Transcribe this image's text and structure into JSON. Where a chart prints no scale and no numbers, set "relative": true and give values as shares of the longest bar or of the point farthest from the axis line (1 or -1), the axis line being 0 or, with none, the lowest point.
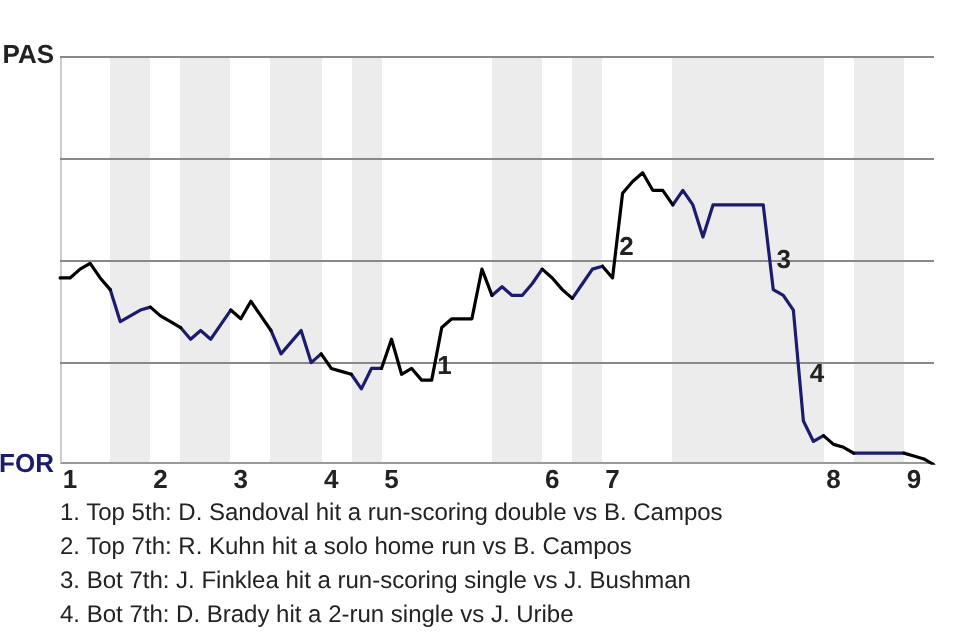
{
  "chart_data": {
    "type": "line",
    "relative": true,
    "categories": [
      null,
      "1",
      null,
      null,
      null,
      null,
      null,
      null,
      null,
      null,
      "2",
      null,
      null,
      null,
      null,
      null,
      null,
      null,
      "3",
      null,
      null,
      null,
      null,
      null,
      null,
      null,
      null,
      "4",
      null,
      null,
      null,
      null,
      null,
      "5",
      null,
      null,
      null,
      null,
      null,
      null,
      null,
      null,
      null,
      null,
      null,
      null,
      null,
      null,
      null,
      "6",
      null,
      null,
      null,
      null,
      null,
      "7",
      null,
      null,
      null,
      null,
      null,
      null,
      null,
      null,
      null,
      null,
      null,
      null,
      null,
      null,
      null,
      null,
      null,
      null,
      null,
      null,
      null,
      "8",
      null,
      null,
      null,
      null,
      null,
      null,
      null,
      "9",
      null,
      null
    ],
    "series": [
      {
        "color": "#000000",
        "values": [
          0.64,
          0.64,
          0.67,
          0.69,
          0.64,
          0.6,
          null,
          null,
          null,
          0.54,
          0.51,
          0.49,
          0.47,
          null,
          null,
          null,
          null,
          0.53,
          0.5,
          0.56,
          0.51,
          0.46,
          null,
          null,
          null,
          null,
          0.38,
          0.33,
          0.32,
          0.31,
          null,
          null,
          0.33,
          0.43,
          0.31,
          0.33,
          0.29,
          0.29,
          0.47,
          0.5,
          0.5,
          0.5,
          0.67,
          0.58,
          null,
          null,
          null,
          null,
          0.67,
          0.64,
          0.6,
          0.57,
          null,
          null,
          0.68,
          0.64,
          0.93,
          0.97,
          1,
          0.94,
          0.94,
          0.89,
          null,
          null,
          null,
          null,
          null,
          null,
          null,
          null,
          null,
          null,
          null,
          null,
          null,
          null,
          0.1,
          0.07,
          0.06,
          0.04,
          null,
          null,
          null,
          null,
          0.04,
          0.03,
          0.02,
          0
        ]
      },
      {
        "color": "#1c1c6e",
        "values": [
          null,
          null,
          null,
          null,
          null,
          0.6,
          0.49,
          0.51,
          0.53,
          0.54,
          null,
          null,
          0.47,
          0.43,
          0.46,
          0.43,
          0.48,
          0.53,
          null,
          null,
          null,
          0.46,
          0.38,
          0.42,
          0.46,
          0.35,
          0.38,
          null,
          null,
          0.31,
          0.26,
          0.33,
          0.33,
          null,
          null,
          null,
          null,
          null,
          null,
          null,
          null,
          null,
          null,
          0.58,
          0.61,
          0.58,
          0.58,
          0.62,
          0.67,
          null,
          null,
          0.57,
          0.62,
          0.67,
          0.68,
          null,
          null,
          null,
          null,
          null,
          null,
          0.89,
          0.94,
          0.89,
          0.78,
          0.89,
          0.89,
          0.89,
          0.89,
          0.89,
          0.89,
          0.6,
          0.58,
          0.53,
          0.15,
          0.08,
          0.1,
          null,
          null,
          0.04,
          0.04,
          0.04,
          0.04,
          0.04,
          0.04,
          null,
          null,
          null
        ]
      }
    ],
    "ref_lines": [
      {
        "axis": "y",
        "value": 0.35,
        "color": "#888888"
      },
      {
        "axis": "y",
        "value": 0.7,
        "color": "#888888"
      },
      {
        "axis": "y",
        "value": 1.05,
        "color": "#888888"
      },
      {
        "axis": "y",
        "value": 1.4,
        "color": "#888888"
      }
    ],
    "marker": "none",
    "line_style": "solid",
    "annotations": [
      "PAS",
      "FOR",
      "1",
      "2",
      "3",
      "4",
      "1. Top 5th: D. Sandoval hit a run-scoring double vs B. Campos",
      "2. Top 7th: R. Kuhn hit a solo home run vs B. Campos",
      "3. Bot 7th: J. Finklea hit a run-scoring single vs J. Bushman",
      "4. Bot 7th: D. Brady hit a 2-run single vs J. Uribe"
    ]
  }
}
